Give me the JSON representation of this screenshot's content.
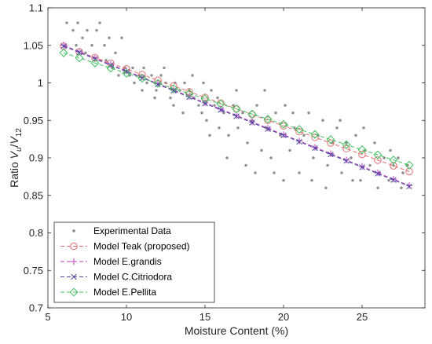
{
  "chart_data": {
    "type": "scatter",
    "title": "",
    "xlabel": "Moisture Content (%)",
    "ylabel": {
      "prefix": "Ratio ",
      "v1": "V",
      "s1": "u",
      "slash": "/",
      "v2": "V",
      "s2": "12"
    },
    "xlim": [
      5,
      29
    ],
    "ylim": [
      0.7,
      1.1
    ],
    "xticks": [
      5,
      10,
      15,
      20,
      25
    ],
    "yticks": [
      0.7,
      0.75,
      0.8,
      0.85,
      0.9,
      0.95,
      1,
      1.05,
      1.1
    ],
    "ytick_labels": [
      "0.7",
      "0.75",
      "0.8",
      "0.85",
      "0.9",
      "0.95",
      "1",
      "1.05",
      "1.1"
    ],
    "grid": false,
    "legend_position": "bottom-left",
    "series": [
      {
        "name": "Experimental Data",
        "kind": "scatter",
        "color": "#8c8c8c",
        "points": [
          [
            6.2,
            1.08
          ],
          [
            6.6,
            1.07
          ],
          [
            6.9,
            1.08
          ],
          [
            7.2,
            1.06
          ],
          [
            7.5,
            1.07
          ],
          [
            7.8,
            1.05
          ],
          [
            8.1,
            1.07
          ],
          [
            8.3,
            1.08
          ],
          [
            8.6,
            1.05
          ],
          [
            8.9,
            1.06
          ],
          [
            9.3,
            1.04
          ],
          [
            9.7,
            1.06
          ],
          [
            6.8,
            1.05
          ],
          [
            7.4,
            1.04
          ],
          [
            8.0,
            1.03
          ],
          [
            8.7,
            1.03
          ],
          [
            9.1,
            1.02
          ],
          [
            9.5,
            1.01
          ],
          [
            9.9,
            1.02
          ],
          [
            10.2,
            1.01
          ],
          [
            10.5,
            1.0
          ],
          [
            10.8,
            1.01
          ],
          [
            11.0,
            0.99
          ],
          [
            11.3,
            1.0
          ],
          [
            11.6,
            1.01
          ],
          [
            11.9,
            0.99
          ],
          [
            12.2,
            1.01
          ],
          [
            12.5,
            1.0
          ],
          [
            12.8,
            0.98
          ],
          [
            13.1,
            1.0
          ],
          [
            13.4,
            0.99
          ],
          [
            13.7,
            1.0
          ],
          [
            14.0,
            0.99
          ],
          [
            14.3,
            0.98
          ],
          [
            14.6,
            0.97
          ],
          [
            14.9,
            1.0
          ],
          [
            15.1,
            0.95
          ],
          [
            15.4,
            0.99
          ],
          [
            15.6,
            0.97
          ],
          [
            15.9,
            0.94
          ],
          [
            10.4,
            1.02
          ],
          [
            11.1,
            1.02
          ],
          [
            11.8,
            0.98
          ],
          [
            12.4,
            1.02
          ],
          [
            13.0,
            0.97
          ],
          [
            13.6,
            0.96
          ],
          [
            14.2,
            1.01
          ],
          [
            14.8,
            0.96
          ],
          [
            15.3,
            0.93
          ],
          [
            15.8,
            0.98
          ],
          [
            16.2,
            0.96
          ],
          [
            16.5,
            0.93
          ],
          [
            16.8,
            0.97
          ],
          [
            17.1,
            0.94
          ],
          [
            17.4,
            0.96
          ],
          [
            17.7,
            0.92
          ],
          [
            18.0,
            0.95
          ],
          [
            18.3,
            0.97
          ],
          [
            18.6,
            0.91
          ],
          [
            18.9,
            0.94
          ],
          [
            19.2,
            0.9
          ],
          [
            19.5,
            0.96
          ],
          [
            19.8,
            0.93
          ],
          [
            20.1,
            0.97
          ],
          [
            20.4,
            0.91
          ],
          [
            20.7,
            0.94
          ],
          [
            21.0,
            0.88
          ],
          [
            16.4,
            0.9
          ],
          [
            17.0,
            0.99
          ],
          [
            17.6,
            0.89
          ],
          [
            18.2,
            0.88
          ],
          [
            18.8,
            0.99
          ],
          [
            19.4,
            0.88
          ],
          [
            20.0,
            0.87
          ],
          [
            20.6,
            0.96
          ],
          [
            21.3,
            0.93
          ],
          [
            21.6,
            0.96
          ],
          [
            21.9,
            0.9
          ],
          [
            22.2,
            0.93
          ],
          [
            22.5,
            0.95
          ],
          [
            22.8,
            0.89
          ],
          [
            23.1,
            0.92
          ],
          [
            23.4,
            0.94
          ],
          [
            23.7,
            0.88
          ],
          [
            24.0,
            0.92
          ],
          [
            24.3,
            0.9
          ],
          [
            24.6,
            0.93
          ],
          [
            24.9,
            0.87
          ],
          [
            25.2,
            0.91
          ],
          [
            25.5,
            0.89
          ],
          [
            25.8,
            0.92
          ],
          [
            26.1,
            0.88
          ],
          [
            26.4,
            0.9
          ],
          [
            26.7,
            0.87
          ],
          [
            27.0,
            0.89
          ],
          [
            27.3,
            0.9
          ],
          [
            27.6,
            0.88
          ],
          [
            27.9,
            0.89
          ],
          [
            21.8,
            0.87
          ],
          [
            22.7,
            0.86
          ],
          [
            23.6,
            0.95
          ],
          [
            24.4,
            0.87
          ],
          [
            25.1,
            0.94
          ],
          [
            26.0,
            0.86
          ],
          [
            26.8,
            0.91
          ],
          [
            27.5,
            0.86
          ]
        ]
      },
      {
        "name": "Model Teak (proposed)",
        "kind": "line",
        "color": "#e07070",
        "marker": "circle",
        "x": [
          6,
          7,
          8,
          9,
          10,
          11,
          12,
          13,
          14,
          15,
          16,
          17,
          18,
          19,
          20,
          21,
          22,
          23,
          24,
          25,
          26,
          27,
          28
        ],
        "y": [
          1.049,
          1.0414,
          1.0338,
          1.0262,
          1.0186,
          1.011,
          1.0034,
          0.9958,
          0.9882,
          0.9806,
          0.973,
          0.9654,
          0.9578,
          0.9502,
          0.9426,
          0.935,
          0.9274,
          0.9198,
          0.9122,
          0.9046,
          0.897,
          0.8894,
          0.8818
        ]
      },
      {
        "name": "Model E.grandis",
        "kind": "line",
        "color": "#c040c0",
        "marker": "plus",
        "x": [
          6,
          7,
          8,
          9,
          10,
          11,
          12,
          13,
          14,
          15,
          16,
          17,
          18,
          19,
          20,
          21,
          22,
          23,
          24,
          25,
          26,
          27,
          28
        ],
        "y": [
          1.05,
          1.0415,
          1.033,
          1.0245,
          1.016,
          1.0075,
          0.999,
          0.9905,
          0.982,
          0.9735,
          0.965,
          0.9565,
          0.948,
          0.9395,
          0.931,
          0.9225,
          0.914,
          0.9055,
          0.897,
          0.8885,
          0.88,
          0.8715,
          0.863
        ]
      },
      {
        "name": "Model C.Citriodora",
        "kind": "line",
        "color": "#4a4aa0",
        "marker": "x",
        "x": [
          6,
          7,
          8,
          9,
          10,
          11,
          12,
          13,
          14,
          15,
          16,
          17,
          18,
          19,
          20,
          21,
          22,
          23,
          24,
          25,
          26,
          27,
          28
        ],
        "y": [
          1.049,
          1.0405,
          1.032,
          1.0235,
          1.015,
          1.0065,
          0.998,
          0.9895,
          0.981,
          0.9725,
          0.964,
          0.9555,
          0.947,
          0.9385,
          0.93,
          0.9215,
          0.913,
          0.9045,
          0.896,
          0.8875,
          0.879,
          0.8705,
          0.862
        ]
      },
      {
        "name": "Model E.Pellita",
        "kind": "line",
        "color": "#40c060",
        "marker": "diamond",
        "x": [
          6,
          7,
          8,
          9,
          10,
          11,
          12,
          13,
          14,
          15,
          16,
          17,
          18,
          19,
          20,
          21,
          22,
          23,
          24,
          25,
          26,
          27,
          28
        ],
        "y": [
          1.04,
          1.0332,
          1.0264,
          1.0196,
          1.0128,
          1.006,
          0.9992,
          0.9924,
          0.9856,
          0.9788,
          0.972,
          0.9652,
          0.9584,
          0.9516,
          0.9448,
          0.938,
          0.9312,
          0.9244,
          0.9176,
          0.9108,
          0.904,
          0.8972,
          0.8904
        ]
      }
    ]
  }
}
